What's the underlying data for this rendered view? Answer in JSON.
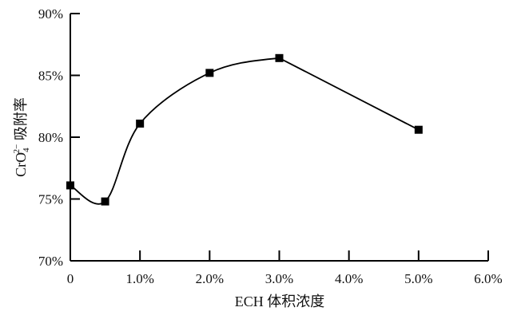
{
  "chart_data": {
    "type": "line",
    "title": "",
    "xlabel": "ECH 体积浓度",
    "ylabel": {
      "prefix": "CrO",
      "subscript": "4",
      "superscript": "2−",
      "suffix": " 吸附率"
    },
    "xlim": [
      0,
      6.0
    ],
    "ylim": [
      70,
      90
    ],
    "x_ticks": [
      0,
      1.0,
      2.0,
      3.0,
      4.0,
      5.0,
      6.0
    ],
    "x_tick_labels": [
      "0",
      "1.0%",
      "2.0%",
      "3.0%",
      "4.0%",
      "5.0%",
      "6.0%"
    ],
    "y_ticks": [
      70,
      75,
      80,
      85,
      90
    ],
    "y_tick_labels": [
      "70%",
      "75%",
      "80%",
      "85%",
      "90%"
    ],
    "grid": false,
    "marker": "filled-square",
    "line_style": "smooth",
    "series": [
      {
        "x": [
          0,
          0.5,
          1.0,
          2.0,
          3.0,
          5.0
        ],
        "y": [
          76.1,
          74.8,
          81.1,
          85.2,
          86.4,
          80.6
        ],
        "color": "#000000"
      }
    ]
  }
}
